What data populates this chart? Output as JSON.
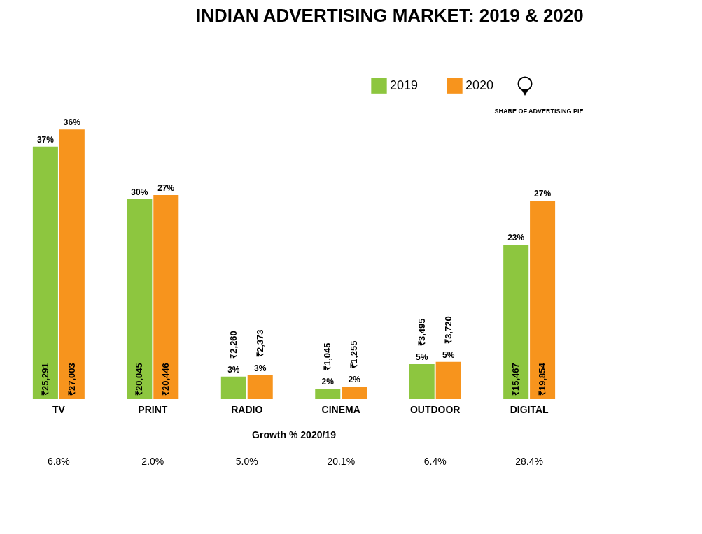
{
  "chart_data": {
    "type": "bar",
    "title": "INDIAN ADVERTISING MARKET: 2019 & 2020",
    "categories": [
      "TV",
      "PRINT",
      "RADIO",
      "CINEMA",
      "OUTDOOR",
      "DIGITAL"
    ],
    "series": [
      {
        "name": "2019",
        "color": "#8dc63f",
        "values": [
          25291,
          20045,
          2260,
          1045,
          3495,
          15467
        ],
        "value_labels": [
          "₹25,291",
          "₹20,045",
          "₹2,260",
          "₹1,045",
          "₹3,495",
          "₹15,467"
        ]
      },
      {
        "name": "2020",
        "color": "#f7941d",
        "values": [
          27003,
          20446,
          2373,
          1255,
          3720,
          19854
        ],
        "value_labels": [
          "₹27,003",
          "₹20,446",
          "₹2,373",
          "₹1,255",
          "₹3,720",
          "₹19,854"
        ]
      }
    ],
    "legend": "top right",
    "annotations": [
      "SHARE OF ADVERTISING PIE",
      "Growth % 2020/19",
      {
        "text": "37%",
        "x": "TV",
        "y": 25291
      },
      {
        "text": "36%",
        "x": "TV",
        "y": 27003
      },
      {
        "text": "30%",
        "x": "PRINT",
        "y": 20045
      },
      {
        "text": "27%",
        "x": "PRINT",
        "y": 20446
      },
      {
        "text": "3%",
        "x": "RADIO",
        "y": 2260
      },
      {
        "text": "3%",
        "x": "RADIO",
        "y": 2373
      },
      {
        "text": "2%",
        "x": "CINEMA",
        "y": 1045
      },
      {
        "text": "2%",
        "x": "CINEMA",
        "y": 1255
      },
      {
        "text": "5%",
        "x": "OUTDOOR",
        "y": 3495
      },
      {
        "text": "5%",
        "x": "OUTDOOR",
        "y": 3720
      },
      {
        "text": "23%",
        "x": "DIGITAL",
        "y": 15467
      },
      {
        "text": "27%",
        "x": "DIGITAL",
        "y": 19854
      },
      "6.8%",
      "2.0%",
      "5.0%",
      "20.1%",
      "6.4%",
      "28.4%"
    ]
  }
}
